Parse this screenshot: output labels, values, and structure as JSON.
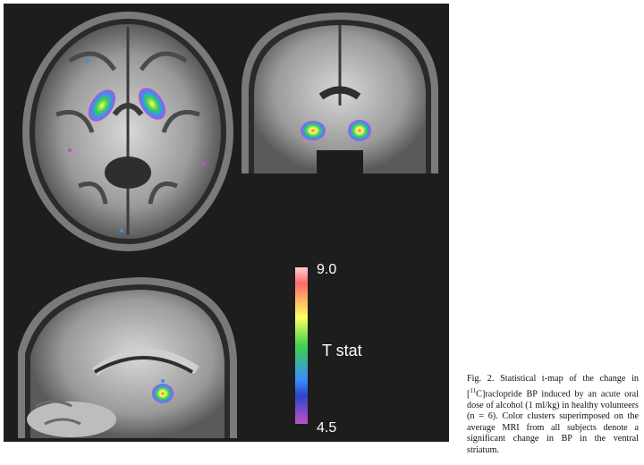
{
  "colorbar": {
    "max_label": "9.0",
    "min_label": "4.5",
    "title": "T stat"
  },
  "caption": {
    "fig_label": "Fig. 2.",
    "text_before_sup": "Statistical t-map of the change in [",
    "sup": "11",
    "text_after_sup": "C]raclopride BP induced by an acute oral dose of alcohol (1 ml/kg) in healthy volunteers (n = 6). Color clusters superimposed on the average MRI from all subjects denote a significant change in BP in the ventral striatum."
  },
  "colors": {
    "figure_bg": "#1d1d1d",
    "hot": "#ff5a5a",
    "mid": "#ffff66",
    "low": "#3a8cff",
    "lowest": "#c050c8"
  }
}
